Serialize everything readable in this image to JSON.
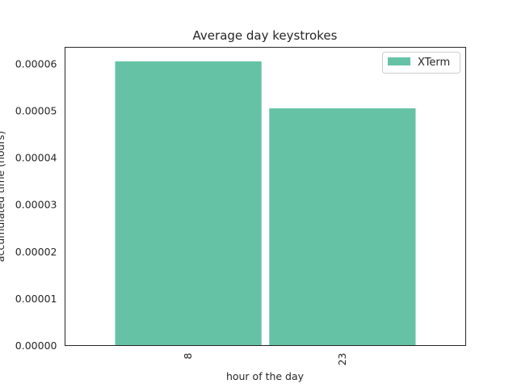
{
  "chart_data": {
    "type": "bar",
    "title": "Average day keystrokes",
    "xlabel": "hour of the day",
    "ylabel": "accumulated time (hours)",
    "categories": [
      "8",
      "23"
    ],
    "series": [
      {
        "name": "XTerm",
        "values": [
          6.05e-05,
          5.05e-05
        ],
        "color": "#66c2a5"
      }
    ],
    "ylim": [
      0,
      6.35e-05
    ],
    "yticks": [
      0,
      1e-05,
      2e-05,
      3e-05,
      4e-05,
      5e-05,
      6e-05
    ],
    "ytick_labels": [
      "0.00000",
      "0.00001",
      "0.00002",
      "0.00003",
      "0.00004",
      "0.00005",
      "0.00006"
    ],
    "grid": false,
    "legend_position": "top-right"
  }
}
